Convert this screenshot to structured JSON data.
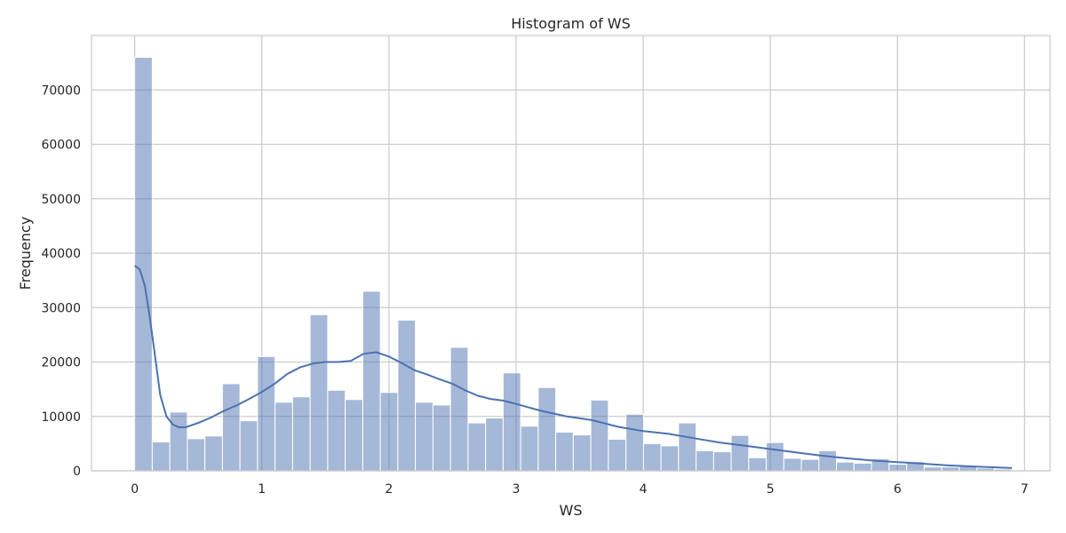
{
  "chart_data": {
    "type": "bar",
    "title": "Histogram of WS",
    "xlabel": "WS",
    "ylabel": "Frequency",
    "xlim": [
      -0.34,
      7.2
    ],
    "ylim": [
      0,
      80000
    ],
    "xticks": [
      0,
      1,
      2,
      3,
      4,
      5,
      6,
      7
    ],
    "yticks": [
      0,
      10000,
      20000,
      30000,
      40000,
      50000,
      60000,
      70000
    ],
    "grid": true,
    "bin_start": 0.0,
    "bin_width": 0.138,
    "values": [
      76000,
      5300,
      10800,
      5900,
      6400,
      16000,
      9200,
      21000,
      12600,
      13600,
      28700,
      14800,
      13100,
      33000,
      14400,
      27700,
      12600,
      12100,
      22700,
      8800,
      9700,
      18000,
      8200,
      15300,
      7100,
      6600,
      13000,
      5800,
      10400,
      5000,
      4600,
      8800,
      3700,
      3500,
      6500,
      2400,
      5200,
      2300,
      2100,
      3700,
      1600,
      1400,
      2200,
      1200,
      1700,
      700,
      700,
      800,
      500,
      300
    ],
    "kde": {
      "x": [
        0.0,
        0.04,
        0.08,
        0.12,
        0.16,
        0.2,
        0.25,
        0.3,
        0.35,
        0.4,
        0.5,
        0.6,
        0.7,
        0.8,
        0.9,
        1.0,
        1.1,
        1.2,
        1.3,
        1.4,
        1.5,
        1.6,
        1.7,
        1.8,
        1.9,
        2.0,
        2.1,
        2.2,
        2.3,
        2.4,
        2.5,
        2.6,
        2.7,
        2.8,
        2.9,
        3.0,
        3.2,
        3.4,
        3.6,
        3.8,
        4.0,
        4.2,
        4.4,
        4.6,
        4.8,
        5.0,
        5.2,
        5.4,
        5.6,
        5.8,
        6.0,
        6.2,
        6.4,
        6.6,
        6.9
      ],
      "y": [
        37700,
        37000,
        34000,
        28000,
        21000,
        14000,
        10000,
        8500,
        8000,
        8000,
        8800,
        9800,
        11000,
        12000,
        13200,
        14500,
        16000,
        17800,
        19000,
        19700,
        20000,
        20000,
        20200,
        21500,
        21800,
        21000,
        19800,
        18500,
        17700,
        16800,
        16000,
        14800,
        13800,
        13200,
        12900,
        12300,
        11000,
        10000,
        9300,
        8100,
        7300,
        6800,
        6000,
        5200,
        4600,
        4000,
        3400,
        2800,
        2300,
        1900,
        1600,
        1300,
        1000,
        800,
        500
      ]
    }
  }
}
